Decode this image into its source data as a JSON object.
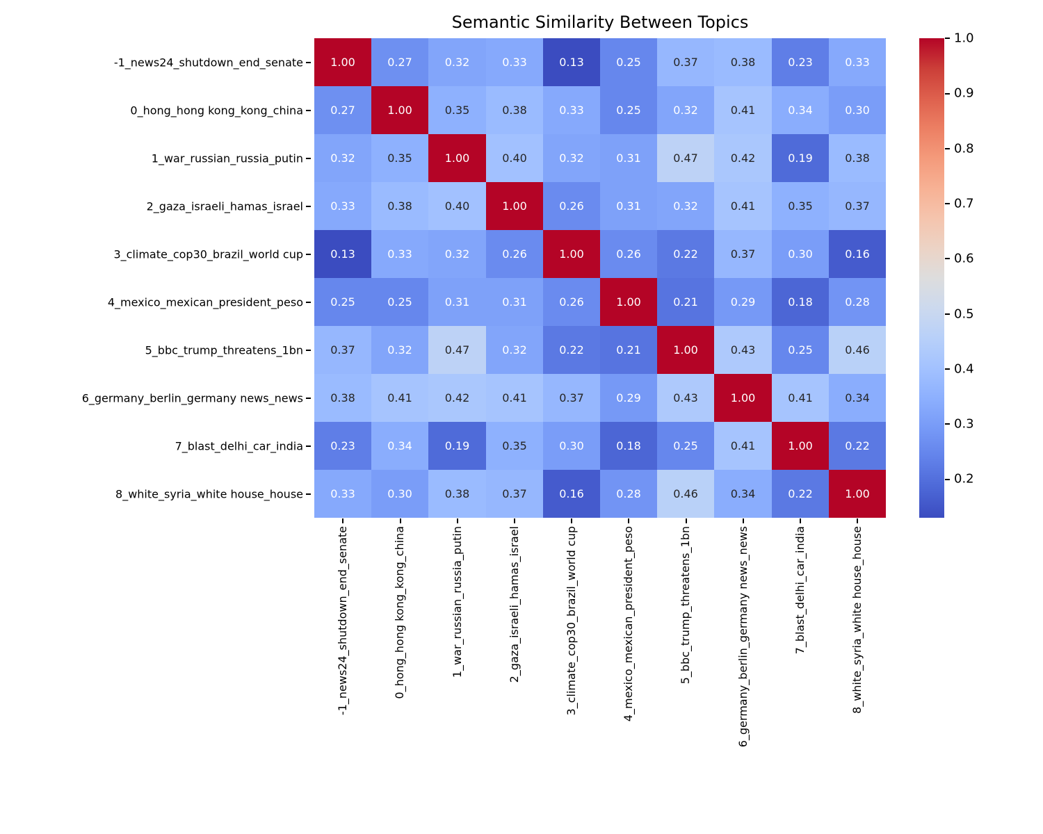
{
  "chart_data": {
    "type": "heatmap",
    "title": "Semantic Similarity Between Topics",
    "colormap": "coolwarm",
    "vmin": 0.13,
    "vmax": 1.0,
    "annotated": true,
    "annot_decimals": 2,
    "categories": [
      "-1_news24_shutdown_end_senate",
      "0_hong_hong kong_kong_china",
      "1_war_russian_russia_putin",
      "2_gaza_israeli_hamas_israel",
      "3_climate_cop30_brazil_world cup",
      "4_mexico_mexican_president_peso",
      "5_bbc_trump_threatens_1bn",
      "6_germany_berlin_germany news_news",
      "7_blast_delhi_car_india",
      "8_white_syria_white house_house"
    ],
    "matrix": [
      [
        1.0,
        0.27,
        0.32,
        0.33,
        0.13,
        0.25,
        0.37,
        0.38,
        0.23,
        0.33
      ],
      [
        0.27,
        1.0,
        0.35,
        0.38,
        0.33,
        0.25,
        0.32,
        0.41,
        0.34,
        0.3
      ],
      [
        0.32,
        0.35,
        1.0,
        0.4,
        0.32,
        0.31,
        0.47,
        0.42,
        0.19,
        0.38
      ],
      [
        0.33,
        0.38,
        0.4,
        1.0,
        0.26,
        0.31,
        0.32,
        0.41,
        0.35,
        0.37
      ],
      [
        0.13,
        0.33,
        0.32,
        0.26,
        1.0,
        0.26,
        0.22,
        0.37,
        0.3,
        0.16
      ],
      [
        0.25,
        0.25,
        0.31,
        0.31,
        0.26,
        1.0,
        0.21,
        0.29,
        0.18,
        0.28
      ],
      [
        0.37,
        0.32,
        0.47,
        0.32,
        0.22,
        0.21,
        1.0,
        0.43,
        0.25,
        0.46
      ],
      [
        0.38,
        0.41,
        0.42,
        0.41,
        0.37,
        0.29,
        0.43,
        1.0,
        0.41,
        0.34
      ],
      [
        0.23,
        0.34,
        0.19,
        0.35,
        0.3,
        0.18,
        0.25,
        0.41,
        1.0,
        0.22
      ],
      [
        0.33,
        0.3,
        0.38,
        0.37,
        0.16,
        0.28,
        0.46,
        0.34,
        0.22,
        1.0
      ]
    ],
    "dark_text_threshold": 0.35,
    "dark_text_overrides": [
      [
        7,
        9
      ],
      [
        9,
        7
      ]
    ],
    "colorbar_ticks": [
      1.0,
      0.9,
      0.8,
      0.7,
      0.6,
      0.5,
      0.4,
      0.3,
      0.2
    ],
    "legend_position": "right-colorbar",
    "grid": false
  },
  "colors": {
    "annot_light": "#ffffff",
    "annot_dark": "#262626",
    "label_color": "#000000",
    "background": "#ffffff"
  }
}
